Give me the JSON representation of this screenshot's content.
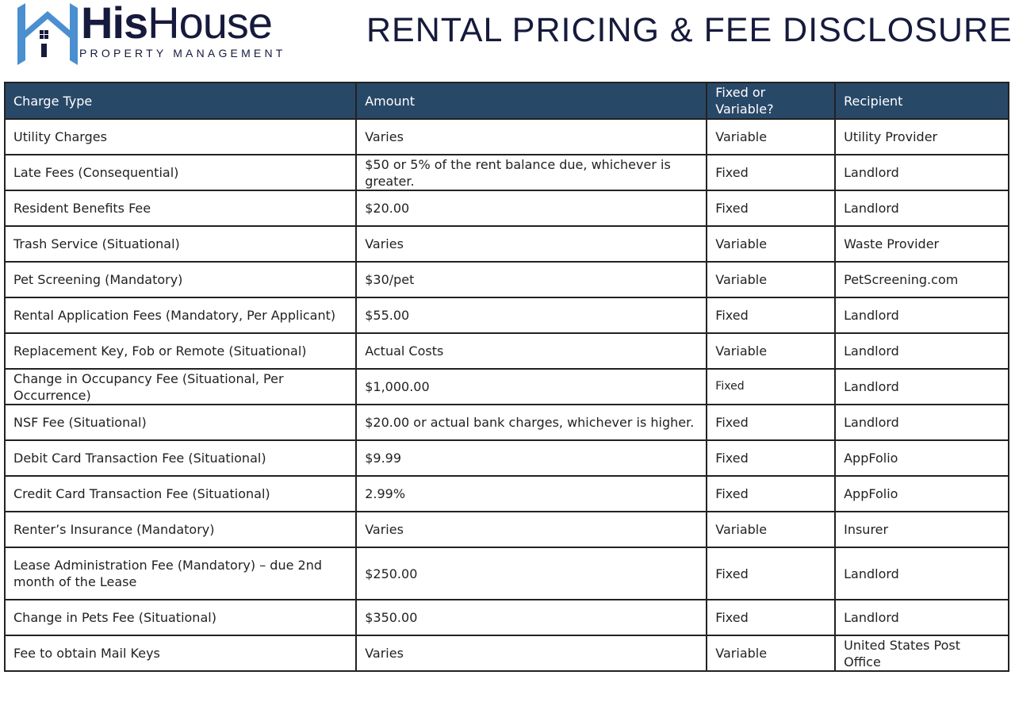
{
  "logo": {
    "brand_bold": "His",
    "brand_light": "House",
    "subtitle": "PROPERTY MANAGEMENT",
    "colors": {
      "house": "#4a8fd0",
      "text": "#161a3c"
    }
  },
  "title": "RENTAL PRICING & FEE DISCLOSURE",
  "colors": {
    "header_bg": "#284868"
  },
  "table": {
    "headers": [
      "Charge Type",
      "Amount",
      "Fixed or Variable?",
      "Recipient"
    ],
    "rows": [
      [
        "Utility Charges",
        "Varies",
        "Variable",
        "Utility Provider"
      ],
      [
        "Late Fees (Consequential)",
        "$50 or 5% of the rent balance due, whichever is greater.",
        "Fixed",
        "Landlord"
      ],
      [
        "Resident Benefits Fee",
        "$20.00",
        "Fixed",
        "Landlord"
      ],
      [
        "Trash Service (Situational)",
        "Varies",
        "Variable",
        "Waste Provider"
      ],
      [
        "Pet Screening (Mandatory)",
        "$30/pet",
        "Variable",
        "PetScreening.com"
      ],
      [
        "Rental Application Fees (Mandatory, Per Applicant)",
        "$55.00",
        "Fixed",
        "Landlord"
      ],
      [
        "Replacement Key, Fob or Remote (Situational)",
        "Actual Costs",
        "Variable",
        "Landlord"
      ],
      [
        "Change in Occupancy Fee (Situational, Per Occurrence)",
        "$1,000.00",
        "Fixed",
        "Landlord"
      ],
      [
        "NSF Fee (Situational)",
        "$20.00 or actual bank charges, whichever is higher.",
        "Fixed",
        "Landlord"
      ],
      [
        "Debit Card Transaction Fee (Situational)",
        "$9.99",
        "Fixed",
        "AppFolio"
      ],
      [
        "Credit Card Transaction Fee (Situational)",
        "2.99%",
        "Fixed",
        "AppFolio"
      ],
      [
        "Renter’s Insurance (Mandatory)",
        "Varies",
        "Variable",
        "Insurer"
      ],
      [
        "Lease Administration Fee (Mandatory) – due 2nd month of the Lease",
        "$250.00",
        "Fixed",
        "Landlord"
      ],
      [
        "Change in Pets Fee (Situational)",
        "$350.00",
        "Fixed",
        "Landlord"
      ],
      [
        "Fee to obtain Mail Keys",
        "Varies",
        "Variable",
        "United States Post Office"
      ]
    ]
  }
}
